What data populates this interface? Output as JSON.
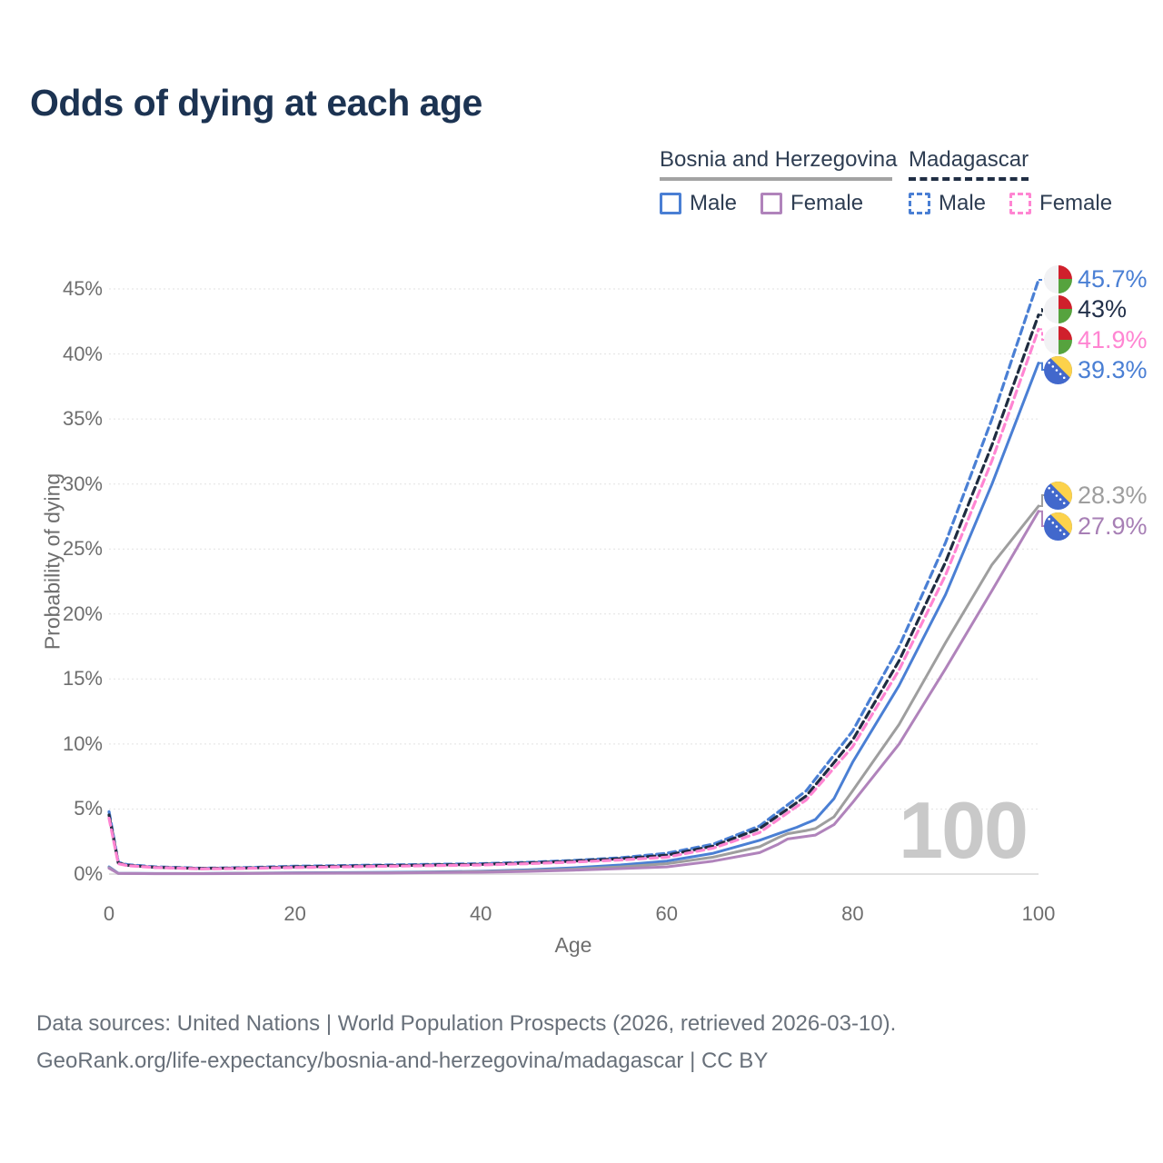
{
  "title": "Odds of dying at each age",
  "watermark": "100",
  "legend": {
    "groups": [
      {
        "label": "Bosnia and Herzegovina",
        "style": "solid",
        "color": "#a3a3a3",
        "items": [
          {
            "label": "Male",
            "color": "#4a7fd4"
          },
          {
            "label": "Female",
            "color": "#b083bb"
          }
        ]
      },
      {
        "label": "Madagascar",
        "style": "dashed",
        "color": "#202e44",
        "items": [
          {
            "label": "Male",
            "color": "#4a7fd4"
          },
          {
            "label": "Female",
            "color": "#ff85d2"
          }
        ]
      }
    ]
  },
  "chart_data": {
    "type": "line",
    "title": "Odds of dying at each age",
    "xlabel": "Age",
    "ylabel": "Probability of dying",
    "xlim": [
      0,
      100
    ],
    "ylim": [
      0,
      45
    ],
    "grid": true,
    "legend_position": "top-right",
    "x_ticks": [
      0,
      20,
      40,
      60,
      80,
      100
    ],
    "y_tick_values": [
      0,
      5,
      10,
      15,
      20,
      25,
      30,
      35,
      40,
      45
    ],
    "y_tick_labels": [
      "0%",
      "5%",
      "10%",
      "15%",
      "20%",
      "25%",
      "30%",
      "35%",
      "40%",
      "45%"
    ],
    "series": [
      {
        "id": "madagascar-male",
        "name": "Madagascar Male",
        "style": "dashed",
        "color": "#4a7fd4",
        "end_label": "45.7%",
        "points": [
          [
            0,
            4.8
          ],
          [
            1,
            0.9
          ],
          [
            2,
            0.72
          ],
          [
            5,
            0.55
          ],
          [
            10,
            0.45
          ],
          [
            15,
            0.5
          ],
          [
            20,
            0.6
          ],
          [
            25,
            0.65
          ],
          [
            30,
            0.7
          ],
          [
            35,
            0.75
          ],
          [
            40,
            0.8
          ],
          [
            45,
            0.9
          ],
          [
            50,
            1.05
          ],
          [
            55,
            1.25
          ],
          [
            60,
            1.6
          ],
          [
            65,
            2.3
          ],
          [
            70,
            3.7
          ],
          [
            75,
            6.4
          ],
          [
            80,
            11.0
          ],
          [
            85,
            17.5
          ],
          [
            90,
            25.5
          ],
          [
            95,
            35.0
          ],
          [
            100,
            45.7
          ]
        ]
      },
      {
        "id": "madagascar-both",
        "name": "Madagascar Both sexes",
        "style": "dashed",
        "color": "#1f2c40",
        "end_label": "43%",
        "points": [
          [
            0,
            4.55
          ],
          [
            1,
            0.85
          ],
          [
            2,
            0.68
          ],
          [
            5,
            0.52
          ],
          [
            10,
            0.43
          ],
          [
            15,
            0.47
          ],
          [
            20,
            0.55
          ],
          [
            25,
            0.6
          ],
          [
            30,
            0.65
          ],
          [
            35,
            0.7
          ],
          [
            40,
            0.75
          ],
          [
            45,
            0.85
          ],
          [
            50,
            1.0
          ],
          [
            55,
            1.18
          ],
          [
            60,
            1.45
          ],
          [
            65,
            2.15
          ],
          [
            70,
            3.5
          ],
          [
            75,
            6.0
          ],
          [
            80,
            10.3
          ],
          [
            85,
            16.4
          ],
          [
            90,
            24.0
          ],
          [
            95,
            33.0
          ],
          [
            100,
            43.0
          ]
        ]
      },
      {
        "id": "madagascar-female",
        "name": "Madagascar Female",
        "style": "dashed",
        "color": "#ff85d2",
        "end_label": "41.9%",
        "points": [
          [
            0,
            4.3
          ],
          [
            1,
            0.8
          ],
          [
            2,
            0.64
          ],
          [
            5,
            0.5
          ],
          [
            10,
            0.4
          ],
          [
            15,
            0.44
          ],
          [
            20,
            0.5
          ],
          [
            25,
            0.55
          ],
          [
            30,
            0.6
          ],
          [
            35,
            0.65
          ],
          [
            40,
            0.7
          ],
          [
            45,
            0.8
          ],
          [
            50,
            0.92
          ],
          [
            55,
            1.08
          ],
          [
            60,
            1.3
          ],
          [
            65,
            2.0
          ],
          [
            70,
            3.2
          ],
          [
            75,
            5.7
          ],
          [
            80,
            9.8
          ],
          [
            85,
            15.7
          ],
          [
            90,
            23.0
          ],
          [
            95,
            31.8
          ],
          [
            100,
            41.9
          ]
        ]
      },
      {
        "id": "bosnia-male",
        "name": "Bosnia and Herzegovina Male",
        "style": "solid",
        "color": "#4a7fd4",
        "end_label": "39.3%",
        "points": [
          [
            0,
            0.55
          ],
          [
            1,
            0.06
          ],
          [
            5,
            0.04
          ],
          [
            10,
            0.04
          ],
          [
            15,
            0.07
          ],
          [
            20,
            0.1
          ],
          [
            25,
            0.11
          ],
          [
            30,
            0.13
          ],
          [
            35,
            0.17
          ],
          [
            40,
            0.22
          ],
          [
            45,
            0.32
          ],
          [
            50,
            0.48
          ],
          [
            55,
            0.7
          ],
          [
            60,
            1.0
          ],
          [
            65,
            1.6
          ],
          [
            70,
            2.6
          ],
          [
            72,
            3.1
          ],
          [
            74,
            3.6
          ],
          [
            76,
            4.2
          ],
          [
            78,
            5.8
          ],
          [
            80,
            8.6
          ],
          [
            85,
            14.5
          ],
          [
            90,
            21.5
          ],
          [
            95,
            30.0
          ],
          [
            100,
            39.3
          ]
        ]
      },
      {
        "id": "bosnia-both",
        "name": "Bosnia and Herzegovina Both sexes",
        "style": "solid",
        "color": "#9e9e9e",
        "end_label": "28.3%",
        "points": [
          [
            0,
            0.5
          ],
          [
            1,
            0.05
          ],
          [
            5,
            0.035
          ],
          [
            10,
            0.035
          ],
          [
            15,
            0.06
          ],
          [
            20,
            0.08
          ],
          [
            25,
            0.09
          ],
          [
            30,
            0.1
          ],
          [
            35,
            0.14
          ],
          [
            40,
            0.18
          ],
          [
            45,
            0.26
          ],
          [
            50,
            0.38
          ],
          [
            55,
            0.55
          ],
          [
            60,
            0.8
          ],
          [
            65,
            1.3
          ],
          [
            70,
            2.1
          ],
          [
            72,
            2.8
          ],
          [
            73,
            3.1
          ],
          [
            75,
            3.35
          ],
          [
            76,
            3.5
          ],
          [
            78,
            4.4
          ],
          [
            80,
            6.4
          ],
          [
            85,
            11.5
          ],
          [
            90,
            17.8
          ],
          [
            95,
            23.8
          ],
          [
            100,
            28.3
          ]
        ]
      },
      {
        "id": "bosnia-female",
        "name": "Bosnia and Herzegovina Female",
        "style": "solid",
        "color": "#b083bb",
        "end_label": "27.9%",
        "points": [
          [
            0,
            0.45
          ],
          [
            1,
            0.05
          ],
          [
            5,
            0.03
          ],
          [
            10,
            0.03
          ],
          [
            15,
            0.04
          ],
          [
            20,
            0.06
          ],
          [
            25,
            0.07
          ],
          [
            30,
            0.08
          ],
          [
            35,
            0.11
          ],
          [
            40,
            0.14
          ],
          [
            45,
            0.2
          ],
          [
            50,
            0.3
          ],
          [
            55,
            0.42
          ],
          [
            60,
            0.55
          ],
          [
            65,
            1.0
          ],
          [
            70,
            1.65
          ],
          [
            72,
            2.3
          ],
          [
            73,
            2.7
          ],
          [
            75,
            2.9
          ],
          [
            76,
            3.0
          ],
          [
            78,
            3.8
          ],
          [
            80,
            5.5
          ],
          [
            85,
            10.0
          ],
          [
            90,
            15.8
          ],
          [
            95,
            21.8
          ],
          [
            100,
            27.9
          ]
        ]
      }
    ]
  },
  "end_labels": [
    {
      "value": "45.7%",
      "color": "#4a7fd4",
      "flag": "madagascar"
    },
    {
      "value": "43%",
      "color": "#22304a",
      "flag": "madagascar"
    },
    {
      "value": "41.9%",
      "color": "#ff85d2",
      "flag": "madagascar"
    },
    {
      "value": "39.3%",
      "color": "#4a7fd4",
      "flag": "bosnia"
    },
    {
      "value": "28.3%",
      "color": "#9e9e9e",
      "flag": "bosnia"
    },
    {
      "value": "27.9%",
      "color": "#a77fb5",
      "flag": "bosnia"
    }
  ],
  "footer": {
    "line1": "Data sources: United Nations | World Population Prospects (2026, retrieved 2026-03-10).",
    "line2": "GeoRank.org/life-expectancy/bosnia-and-herzegovina/madagascar | CC BY"
  }
}
